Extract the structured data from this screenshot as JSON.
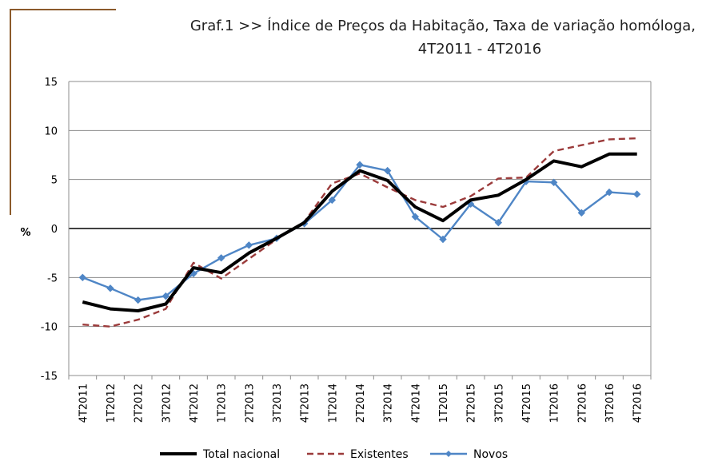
{
  "chart_data": {
    "type": "line",
    "title_prefix": "Graf.1   >>",
    "title_main": "Índice de Preços da Habitação, Taxa de variação homóloga,",
    "title_period": "4T2011 - 4T2016",
    "ylabel": "%",
    "ylim": [
      -15,
      15
    ],
    "yticks": [
      15,
      10,
      5,
      0,
      -5,
      -10,
      -15
    ],
    "grid": true,
    "legend_position": "bottom",
    "categories": [
      "4T2011",
      "1T2012",
      "2T2012",
      "3T2012",
      "4T2012",
      "1T2013",
      "2T2013",
      "3T2013",
      "4T2013",
      "1T2014",
      "2T2014",
      "3T2014",
      "4T2014",
      "1T2015",
      "2T2015",
      "3T2015",
      "4T2015",
      "1T2016",
      "2T2016",
      "3T2016",
      "4T2016"
    ],
    "series": [
      {
        "name": "Total nacional",
        "color": "#000000",
        "style": "solid-thick",
        "values": [
          -7.5,
          -8.2,
          -8.4,
          -7.7,
          -4.0,
          -4.5,
          -2.5,
          -1.0,
          0.6,
          3.8,
          5.9,
          4.9,
          2.2,
          0.8,
          2.9,
          3.4,
          5.0,
          6.9,
          6.3,
          7.6,
          7.6
        ]
      },
      {
        "name": "Existentes",
        "color": "#9b3b3b",
        "style": "dashed",
        "values": [
          -9.8,
          -10.0,
          -9.3,
          -8.2,
          -3.5,
          -5.1,
          -3.1,
          -1.1,
          0.7,
          4.6,
          5.6,
          4.2,
          2.9,
          2.2,
          3.3,
          5.1,
          5.2,
          7.9,
          8.5,
          9.1,
          9.2
        ]
      },
      {
        "name": "Novos",
        "color": "#4f86c6",
        "style": "solid-marker",
        "values": [
          -5.0,
          -6.1,
          -7.3,
          -6.9,
          -4.6,
          -3.0,
          -1.7,
          -1.0,
          0.5,
          2.9,
          6.5,
          5.9,
          1.2,
          -1.1,
          2.5,
          0.6,
          4.8,
          4.7,
          1.6,
          3.7,
          3.5
        ]
      }
    ]
  }
}
